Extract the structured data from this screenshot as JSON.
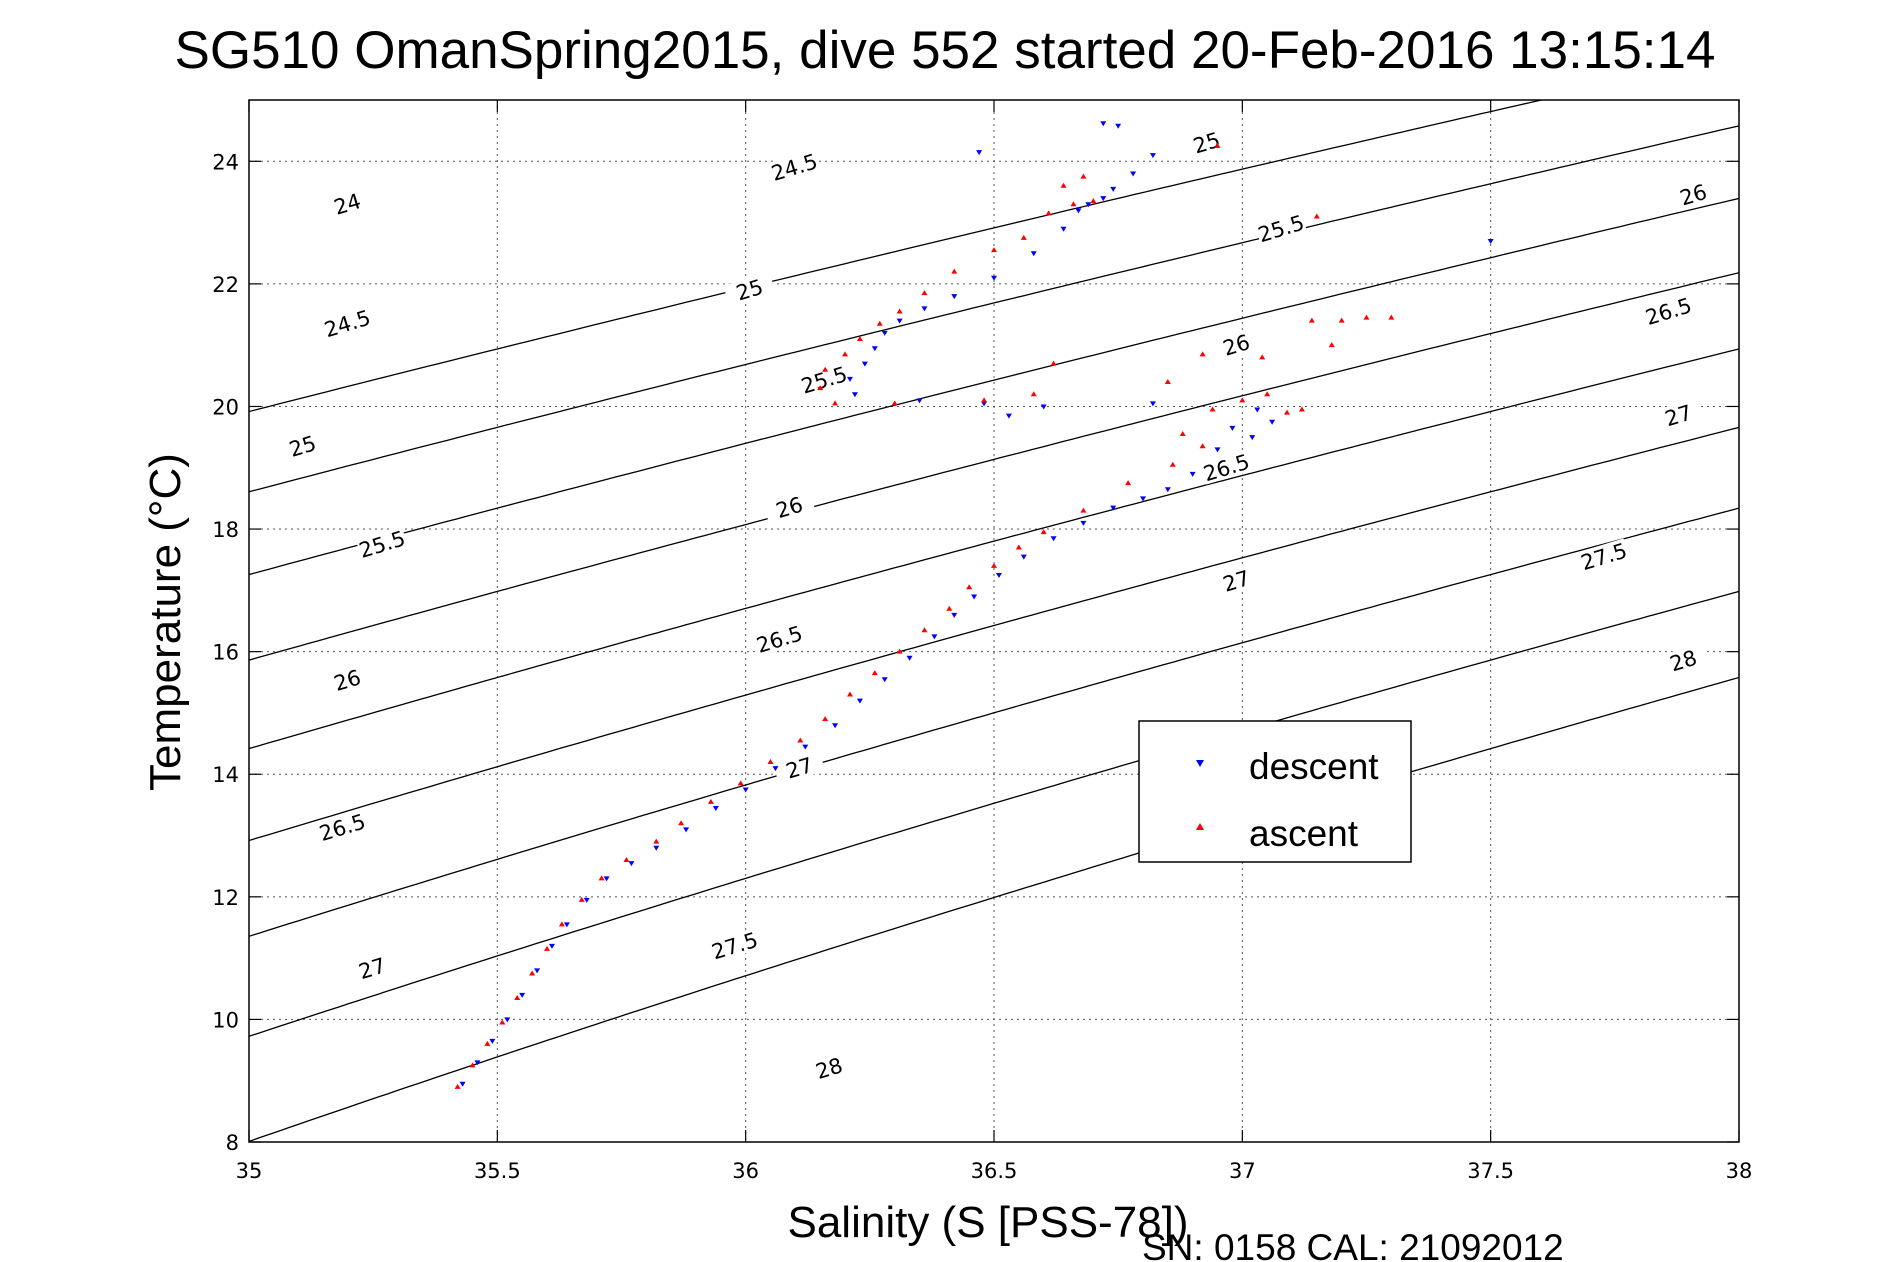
{
  "chart_data": {
    "type": "scatter",
    "title": "SG510 OmanSpring2015, dive 552 started 20-Feb-2016 13:15:14",
    "xlabel": "Salinity (S [PSS-78])",
    "ylabel": "Temperature (°C)",
    "xlim": [
      35,
      38
    ],
    "ylim": [
      8,
      25
    ],
    "x_ticks": [
      35,
      35.5,
      36,
      36.5,
      37,
      37.5,
      38
    ],
    "x_tick_labels": [
      "35",
      "35.5",
      "36",
      "36.5",
      "37",
      "37.5",
      "38"
    ],
    "y_ticks": [
      8,
      10,
      12,
      14,
      16,
      18,
      20,
      22,
      24
    ],
    "y_tick_labels": [
      "8",
      "10",
      "12",
      "14",
      "16",
      "18",
      "20",
      "22",
      "24"
    ],
    "grid": true,
    "legend_position": "center-right",
    "density_contours": {
      "levels": [
        24,
        24.5,
        25,
        25.5,
        26,
        26.5,
        27,
        27.5,
        28
      ],
      "labels": [
        {
          "text": "24",
          "s": 35.2,
          "t": 23.25
        },
        {
          "text": "24.5",
          "s": 35.2,
          "t": 21.3
        },
        {
          "text": "25",
          "s": 35.11,
          "t": 19.3
        },
        {
          "text": "25.5",
          "s": 35.27,
          "t": 17.7
        },
        {
          "text": "26",
          "s": 35.2,
          "t": 15.48
        },
        {
          "text": "26.5",
          "s": 35.19,
          "t": 13.08
        },
        {
          "text": "27",
          "s": 35.25,
          "t": 10.78
        },
        {
          "text": "24.5",
          "s": 36.1,
          "t": 23.85
        },
        {
          "text": "25",
          "s": 36.01,
          "t": 21.85
        },
        {
          "text": "25.5",
          "s": 36.16,
          "t": 20.38
        },
        {
          "text": "26",
          "s": 36.09,
          "t": 18.3
        },
        {
          "text": "26.5",
          "s": 36.07,
          "t": 16.15
        },
        {
          "text": "27",
          "s": 36.11,
          "t": 14.05
        },
        {
          "text": "27.5",
          "s": 35.98,
          "t": 11.15
        },
        {
          "text": "28",
          "s": 36.17,
          "t": 9.15
        },
        {
          "text": "25",
          "s": 36.93,
          "t": 24.25
        },
        {
          "text": "25.5",
          "s": 37.08,
          "t": 22.85
        },
        {
          "text": "26",
          "s": 36.99,
          "t": 20.95
        },
        {
          "text": "26.5",
          "s": 36.97,
          "t": 18.95
        },
        {
          "text": "27",
          "s": 36.99,
          "t": 17.1
        },
        {
          "text": "26",
          "s": 37.91,
          "t": 23.4
        },
        {
          "text": "26.5",
          "s": 37.86,
          "t": 21.5
        },
        {
          "text": "27",
          "s": 37.88,
          "t": 19.8
        },
        {
          "text": "27.5",
          "s": 37.73,
          "t": 17.5
        },
        {
          "text": "28",
          "s": 37.89,
          "t": 15.8
        }
      ]
    },
    "series": [
      {
        "name": "descent",
        "color": "#0000ff",
        "marker": "triangle-down",
        "points": [
          [
            35.43,
            8.95
          ],
          [
            35.46,
            9.3
          ],
          [
            35.49,
            9.65
          ],
          [
            35.52,
            10.0
          ],
          [
            35.55,
            10.4
          ],
          [
            35.58,
            10.8
          ],
          [
            35.61,
            11.2
          ],
          [
            35.64,
            11.55
          ],
          [
            35.68,
            11.95
          ],
          [
            35.72,
            12.3
          ],
          [
            35.77,
            12.55
          ],
          [
            35.82,
            12.8
          ],
          [
            35.88,
            13.1
          ],
          [
            35.94,
            13.45
          ],
          [
            36.0,
            13.75
          ],
          [
            36.06,
            14.1
          ],
          [
            36.12,
            14.45
          ],
          [
            36.18,
            14.8
          ],
          [
            36.23,
            15.2
          ],
          [
            36.28,
            15.55
          ],
          [
            36.33,
            15.9
          ],
          [
            36.38,
            16.25
          ],
          [
            36.42,
            16.6
          ],
          [
            36.46,
            16.9
          ],
          [
            36.51,
            17.25
          ],
          [
            36.56,
            17.55
          ],
          [
            36.62,
            17.85
          ],
          [
            36.68,
            18.1
          ],
          [
            36.74,
            18.35
          ],
          [
            36.8,
            18.5
          ],
          [
            36.85,
            18.65
          ],
          [
            36.9,
            18.9
          ],
          [
            36.95,
            19.3
          ],
          [
            36.98,
            19.65
          ],
          [
            37.03,
            19.95
          ],
          [
            37.06,
            19.75
          ],
          [
            37.02,
            19.5
          ],
          [
            36.82,
            20.05
          ],
          [
            36.6,
            20.0
          ],
          [
            36.53,
            19.85
          ],
          [
            36.48,
            20.05
          ],
          [
            36.35,
            20.1
          ],
          [
            36.22,
            20.2
          ],
          [
            36.21,
            20.45
          ],
          [
            36.24,
            20.7
          ],
          [
            36.26,
            20.95
          ],
          [
            36.28,
            21.2
          ],
          [
            36.31,
            21.4
          ],
          [
            36.36,
            21.6
          ],
          [
            36.42,
            21.8
          ],
          [
            36.5,
            22.1
          ],
          [
            36.58,
            22.5
          ],
          [
            36.64,
            22.9
          ],
          [
            36.67,
            23.2
          ],
          [
            36.69,
            23.3
          ],
          [
            36.72,
            23.4
          ],
          [
            36.74,
            23.55
          ],
          [
            36.78,
            23.8
          ],
          [
            36.82,
            24.1
          ],
          [
            36.75,
            24.58
          ],
          [
            36.72,
            24.62
          ],
          [
            36.47,
            24.15
          ],
          [
            37.5,
            22.7
          ]
        ]
      },
      {
        "name": "ascent",
        "color": "#ff0000",
        "marker": "triangle-up",
        "points": [
          [
            35.42,
            8.9
          ],
          [
            35.45,
            9.25
          ],
          [
            35.48,
            9.6
          ],
          [
            35.51,
            9.95
          ],
          [
            35.54,
            10.35
          ],
          [
            35.57,
            10.75
          ],
          [
            35.6,
            11.15
          ],
          [
            35.63,
            11.55
          ],
          [
            35.67,
            11.95
          ],
          [
            35.71,
            12.3
          ],
          [
            35.76,
            12.6
          ],
          [
            35.82,
            12.9
          ],
          [
            35.87,
            13.2
          ],
          [
            35.93,
            13.55
          ],
          [
            35.99,
            13.85
          ],
          [
            36.05,
            14.2
          ],
          [
            36.11,
            14.55
          ],
          [
            36.16,
            14.9
          ],
          [
            36.21,
            15.3
          ],
          [
            36.26,
            15.65
          ],
          [
            36.31,
            16.0
          ],
          [
            36.36,
            16.35
          ],
          [
            36.41,
            16.7
          ],
          [
            36.45,
            17.05
          ],
          [
            36.5,
            17.4
          ],
          [
            36.55,
            17.7
          ],
          [
            36.6,
            17.95
          ],
          [
            36.68,
            18.3
          ],
          [
            36.77,
            18.75
          ],
          [
            36.86,
            19.05
          ],
          [
            36.92,
            19.35
          ],
          [
            36.88,
            19.55
          ],
          [
            36.94,
            19.95
          ],
          [
            37.0,
            20.1
          ],
          [
            37.05,
            20.2
          ],
          [
            37.09,
            19.9
          ],
          [
            37.12,
            19.95
          ],
          [
            37.04,
            20.8
          ],
          [
            37.14,
            21.4
          ],
          [
            37.18,
            21.0
          ],
          [
            37.2,
            21.4
          ],
          [
            37.25,
            21.45
          ],
          [
            37.3,
            21.45
          ],
          [
            36.92,
            20.85
          ],
          [
            36.85,
            20.4
          ],
          [
            36.62,
            20.7
          ],
          [
            36.58,
            20.2
          ],
          [
            36.48,
            20.1
          ],
          [
            36.3,
            20.05
          ],
          [
            36.18,
            20.05
          ],
          [
            36.15,
            20.3
          ],
          [
            36.16,
            20.6
          ],
          [
            36.2,
            20.85
          ],
          [
            36.23,
            21.1
          ],
          [
            36.27,
            21.35
          ],
          [
            36.31,
            21.55
          ],
          [
            36.36,
            21.85
          ],
          [
            36.42,
            22.2
          ],
          [
            36.5,
            22.55
          ],
          [
            36.56,
            22.75
          ],
          [
            36.61,
            23.15
          ],
          [
            36.66,
            23.3
          ],
          [
            36.7,
            23.35
          ],
          [
            36.64,
            23.6
          ],
          [
            36.68,
            23.75
          ],
          [
            36.95,
            24.25
          ],
          [
            37.15,
            23.1
          ]
        ]
      }
    ],
    "legend": [
      {
        "label": "descent",
        "color": "#0000ff",
        "marker": "triangle-down"
      },
      {
        "label": "ascent",
        "color": "#ff0000",
        "marker": "triangle-up"
      }
    ]
  },
  "footer": {
    "serial": "SN: 0158  CAL: 21092012"
  }
}
